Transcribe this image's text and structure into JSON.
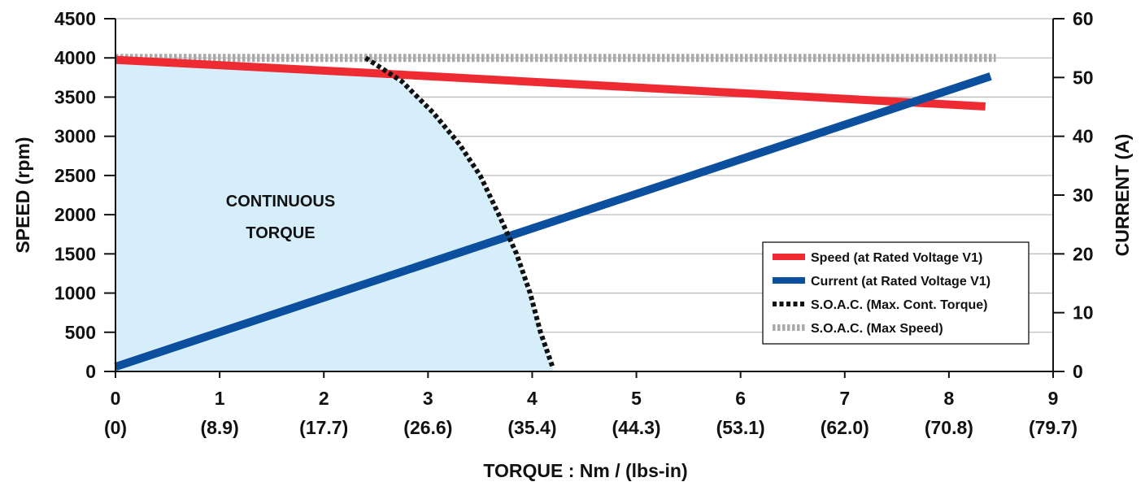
{
  "chart_data": {
    "type": "line",
    "xlabel": "TORQUE : Nm / (lbs-in)",
    "ylabel_left": "SPEED (rpm)",
    "ylabel_right": "CURRENT (A)",
    "xlim": [
      0,
      9
    ],
    "ylim_left": [
      0,
      4500
    ],
    "ylim_right": [
      0,
      60
    ],
    "x_ticks": [
      0,
      1,
      2,
      3,
      4,
      5,
      6,
      7,
      8,
      9
    ],
    "x_ticks_secondary": [
      "(0)",
      "(8.9)",
      "(17.7)",
      "(26.6)",
      "(35.4)",
      "(44.3)",
      "(53.1)",
      "(62.0)",
      "(70.8)",
      "(79.7)"
    ],
    "y_ticks_left": [
      0,
      500,
      1000,
      1500,
      2000,
      2500,
      3000,
      3500,
      4000,
      4500
    ],
    "y_ticks_right": [
      0,
      10,
      20,
      30,
      40,
      50,
      60
    ],
    "grid": true,
    "region_label": [
      "CONTINUOUS",
      "TORQUE"
    ],
    "legend_position": "right",
    "series": [
      {
        "name": "Speed (at Rated  Voltage V1)",
        "axis": "left",
        "color": "#ee2a33",
        "style": "solid",
        "x": [
          0,
          2.4,
          8.35
        ],
        "y": [
          3975,
          3810,
          3380
        ]
      },
      {
        "name": "Current (at Rated Voltage V1)",
        "axis": "right",
        "color": "#0b4f9e",
        "style": "solid",
        "x": [
          0,
          8.4
        ],
        "y": [
          0.8,
          50.2
        ]
      },
      {
        "name": "S.O.A.C. (Max. Cont. Torque)",
        "axis": "left",
        "color": "#111111",
        "style": "dashed",
        "x": [
          2.4,
          2.75,
          3.05,
          3.3,
          3.5,
          3.68,
          3.85,
          3.98,
          4.08,
          4.2
        ],
        "y": [
          4000,
          3700,
          3300,
          2900,
          2500,
          2000,
          1500,
          1000,
          500,
          40
        ]
      },
      {
        "name": "S.O.A.C. (Max Speed)",
        "axis": "left",
        "color": "#aaaaaa",
        "style": "dashed",
        "x": [
          0,
          8.45
        ],
        "y": [
          4000,
          4000
        ]
      }
    ]
  }
}
